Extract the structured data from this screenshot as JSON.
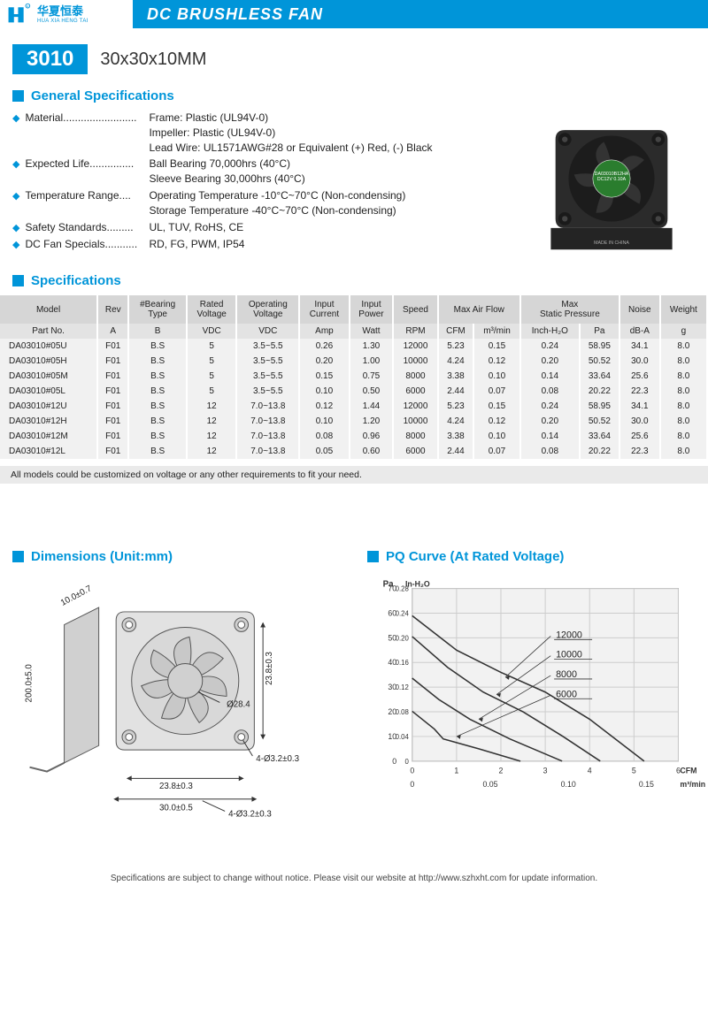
{
  "header": {
    "logo_cn": "华夏恒泰",
    "logo_en": "HUA XIA HENG TAI",
    "title": "DC BRUSHLESS FAN"
  },
  "model": {
    "badge": "3010",
    "size": "30x30x10MM"
  },
  "sections": {
    "general": "General Specifications",
    "specs": "Specifications",
    "dims": "Dimensions (Unit:mm)",
    "pq": "PQ Curve (At Rated Voltage)"
  },
  "general": [
    {
      "label": "Material.........................",
      "lines": [
        "Frame: Plastic (UL94V-0)",
        "Impeller: Plastic (UL94V-0)",
        "Lead Wire: UL1571AWG#28 or Equivalent (+) Red, (-) Black"
      ]
    },
    {
      "label": "Expected Life...............",
      "lines": [
        "Ball Bearing 70,000hrs (40°C)",
        "Sleeve Bearing 30,000hrs (40°C)"
      ]
    },
    {
      "label": "Temperature Range....",
      "lines": [
        "Operating Temperature -10°C~70°C (Non-condensing)",
        "Storage Temperature -40°C~70°C (Non-condensing)"
      ]
    },
    {
      "label": "Safety Standards.........",
      "lines": [
        "UL, TUV, RoHS, CE"
      ]
    },
    {
      "label": "DC Fan Specials...........",
      "lines": [
        "RD, FG, PWM, IP54"
      ]
    }
  ],
  "table": {
    "header1": [
      "Model",
      "Rev",
      "#Bearing\nType",
      "Rated\nVoltage",
      "Operating\nVoltage",
      "Input\nCurrent",
      "Input\nPower",
      "Speed",
      "Max  Air  Flow",
      "",
      "Max\nStatic  Pressure",
      "",
      "Noise",
      "Weight"
    ],
    "header2": [
      "Part No.",
      "A",
      "B",
      "VDC",
      "VDC",
      "Amp",
      "Watt",
      "RPM",
      "CFM",
      "m³/min",
      "Inch-H₂O",
      "Pa",
      "dB-A",
      "g"
    ],
    "rows": [
      [
        "DA03010#05U",
        "F01",
        "B.S",
        "5",
        "3.5~5.5",
        "0.26",
        "1.30",
        "12000",
        "5.23",
        "0.15",
        "0.24",
        "58.95",
        "34.1",
        "8.0"
      ],
      [
        "DA03010#05H",
        "F01",
        "B.S",
        "5",
        "3.5~5.5",
        "0.20",
        "1.00",
        "10000",
        "4.24",
        "0.12",
        "0.20",
        "50.52",
        "30.0",
        "8.0"
      ],
      [
        "DA03010#05M",
        "F01",
        "B.S",
        "5",
        "3.5~5.5",
        "0.15",
        "0.75",
        "8000",
        "3.38",
        "0.10",
        "0.14",
        "33.64",
        "25.6",
        "8.0"
      ],
      [
        "DA03010#05L",
        "F01",
        "B.S",
        "5",
        "3.5~5.5",
        "0.10",
        "0.50",
        "6000",
        "2.44",
        "0.07",
        "0.08",
        "20.22",
        "22.3",
        "8.0"
      ],
      [
        "DA03010#12U",
        "F01",
        "B.S",
        "12",
        "7.0~13.8",
        "0.12",
        "1.44",
        "12000",
        "5.23",
        "0.15",
        "0.24",
        "58.95",
        "34.1",
        "8.0"
      ],
      [
        "DA03010#12H",
        "F01",
        "B.S",
        "12",
        "7.0~13.8",
        "0.10",
        "1.20",
        "10000",
        "4.24",
        "0.12",
        "0.20",
        "50.52",
        "30.0",
        "8.0"
      ],
      [
        "DA03010#12M",
        "F01",
        "B.S",
        "12",
        "7.0~13.8",
        "0.08",
        "0.96",
        "8000",
        "3.38",
        "0.10",
        "0.14",
        "33.64",
        "25.6",
        "8.0"
      ],
      [
        "DA03010#12L",
        "F01",
        "B.S",
        "12",
        "7.0~13.8",
        "0.05",
        "0.60",
        "6000",
        "2.44",
        "0.07",
        "0.08",
        "20.22",
        "22.3",
        "8.0"
      ]
    ],
    "note": "All models could be customized on voltage or any other requirements to fit your need."
  },
  "dimensions": {
    "labels": [
      "10.0±0.7",
      "200.0±5.0",
      "Ø28.4",
      "23.8±0.3",
      "4-Ø3.2±0.3",
      "23.8±0.3",
      "30.0±0.5",
      "4-Ø3.2±0.3"
    ]
  },
  "pq_chart": {
    "y_label_left": "Pa",
    "y_label_right": "In-H₂O",
    "y_ticks_pa": [
      0,
      10,
      20,
      30,
      40,
      50,
      60,
      70
    ],
    "y_ticks_inh2o": [
      "0",
      "0.04",
      "0.08",
      "0.12",
      "0.16",
      "0.20",
      "0.24",
      "0.28"
    ],
    "x_ticks_cfm": [
      0,
      1,
      2,
      3,
      4,
      5,
      6
    ],
    "x_label_cfm": "CFM",
    "x_ticks_m3": [
      "0",
      "0.05",
      "0.10",
      "0.15"
    ],
    "x_label_m3": "m³/min",
    "series": [
      "12000",
      "10000",
      "8000",
      "6000"
    ],
    "grid_color": "#cccccc",
    "bg_color": "#f2f2f2",
    "line_color": "#333333",
    "curves": {
      "12000": [
        [
          0,
          58.95
        ],
        [
          1,
          45
        ],
        [
          2,
          36
        ],
        [
          3,
          28
        ],
        [
          4,
          17
        ],
        [
          5.23,
          0
        ]
      ],
      "10000": [
        [
          0,
          50.52
        ],
        [
          0.8,
          38
        ],
        [
          1.6,
          28
        ],
        [
          2.5,
          20
        ],
        [
          3.4,
          10
        ],
        [
          4.24,
          0
        ]
      ],
      "8000": [
        [
          0,
          33.64
        ],
        [
          0.6,
          25
        ],
        [
          1.3,
          17
        ],
        [
          2.2,
          9
        ],
        [
          3.38,
          0
        ]
      ],
      "6000": [
        [
          0,
          20.22
        ],
        [
          0.5,
          13
        ],
        [
          0.7,
          9
        ],
        [
          1.5,
          5
        ],
        [
          2.44,
          0
        ]
      ]
    }
  },
  "footer": "Specifications are subject to change without notice. Please visit our website at http://www.szhxht.com for update information."
}
